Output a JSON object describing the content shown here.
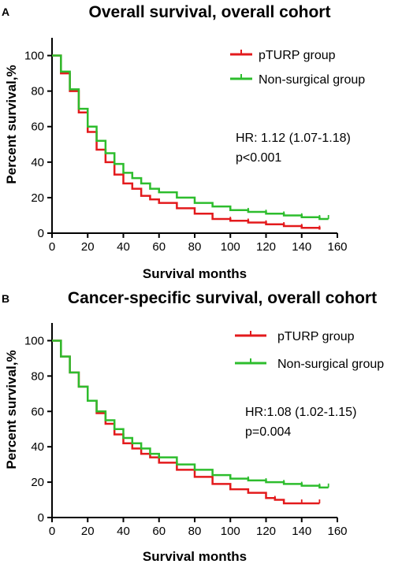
{
  "colors": {
    "pturp": "#e31a1c",
    "nonsurgical": "#2dbd2d",
    "axis": "#000000"
  },
  "chart_data": [
    {
      "panel": "A",
      "type": "line",
      "title": "Overall survival, overall cohort",
      "xlabel": "Survival months",
      "ylabel": "Percent survival,%",
      "xlim": [
        0,
        160
      ],
      "ylim": [
        0,
        110
      ],
      "xticks": [
        "0",
        "20",
        "40",
        "60",
        "80",
        "100",
        "120",
        "140",
        "160"
      ],
      "yticks": [
        "0",
        "20",
        "40",
        "60",
        "80",
        "100"
      ],
      "legend_position": "top-right",
      "grid": false,
      "annotation": [
        "HR: 1.12 (1.07-1.18)",
        "p<0.001"
      ],
      "series": [
        {
          "name": "pTURP group",
          "color": "#e31a1c",
          "x": [
            0,
            5,
            10,
            15,
            20,
            25,
            30,
            35,
            40,
            45,
            50,
            55,
            60,
            70,
            80,
            90,
            100,
            110,
            120,
            130,
            140,
            150
          ],
          "y": [
            100,
            90,
            80,
            68,
            57,
            47,
            40,
            33,
            28,
            25,
            21,
            19,
            17,
            14,
            11,
            8,
            7,
            6,
            5,
            4,
            3,
            2
          ]
        },
        {
          "name": "Non-surgical group",
          "color": "#2dbd2d",
          "x": [
            0,
            5,
            10,
            15,
            20,
            25,
            30,
            35,
            40,
            45,
            50,
            55,
            60,
            70,
            80,
            90,
            100,
            110,
            120,
            130,
            140,
            150,
            155
          ],
          "y": [
            100,
            91,
            81,
            70,
            60,
            52,
            45,
            39,
            34,
            31,
            28,
            25,
            23,
            20,
            17,
            15,
            13,
            12,
            11,
            10,
            9,
            8,
            8
          ]
        }
      ]
    },
    {
      "panel": "B",
      "type": "line",
      "title": "Cancer-specific survival, overall cohort",
      "xlabel": "Survival months",
      "ylabel": "Percent survival,%",
      "xlim": [
        0,
        160
      ],
      "ylim": [
        0,
        110
      ],
      "xticks": [
        "0",
        "20",
        "40",
        "60",
        "80",
        "100",
        "120",
        "140",
        "160"
      ],
      "yticks": [
        "0",
        "20",
        "40",
        "60",
        "80",
        "100"
      ],
      "legend_position": "top-right",
      "grid": false,
      "annotation": [
        "HR:1.08 (1.02-1.15)",
        "p=0.004"
      ],
      "series": [
        {
          "name": "pTURP group",
          "color": "#e31a1c",
          "x": [
            0,
            5,
            10,
            15,
            20,
            25,
            30,
            35,
            40,
            45,
            50,
            55,
            60,
            70,
            80,
            90,
            100,
            110,
            120,
            125,
            130,
            140,
            150
          ],
          "y": [
            100,
            91,
            82,
            74,
            66,
            59,
            53,
            47,
            42,
            39,
            36,
            34,
            31,
            27,
            23,
            19,
            16,
            14,
            11,
            10,
            8,
            8,
            8
          ]
        },
        {
          "name": "Non-surgical group",
          "color": "#2dbd2d",
          "x": [
            0,
            5,
            10,
            15,
            20,
            25,
            30,
            35,
            40,
            45,
            50,
            55,
            60,
            70,
            80,
            90,
            100,
            110,
            120,
            130,
            140,
            150,
            155
          ],
          "y": [
            100,
            91,
            82,
            74,
            66,
            60,
            55,
            50,
            45,
            42,
            39,
            36,
            34,
            30,
            27,
            24,
            22,
            21,
            20,
            19,
            18,
            17,
            17
          ]
        }
      ]
    }
  ]
}
